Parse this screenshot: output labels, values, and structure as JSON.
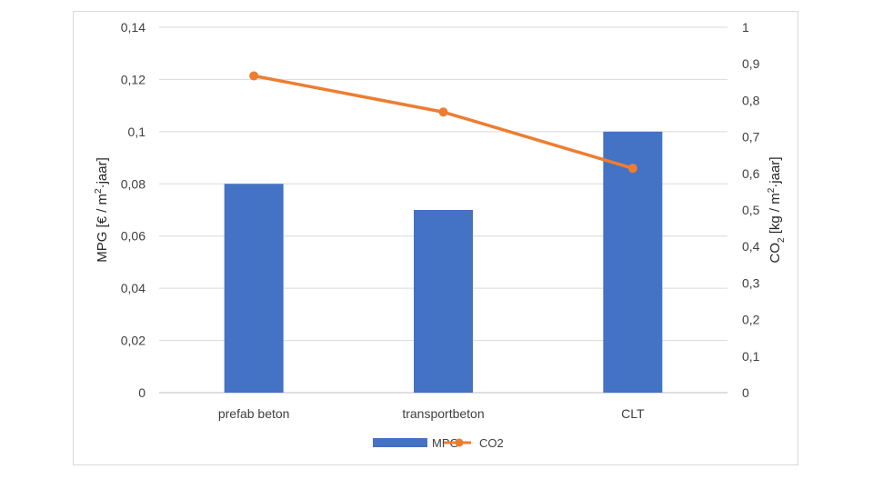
{
  "chart_data": {
    "type": "bar",
    "categories": [
      "prefab beton",
      "transportbeton",
      "CLT"
    ],
    "series": [
      {
        "name": "MPG",
        "type": "bar",
        "axis": "left",
        "values": [
          0.08,
          0.07,
          0.1
        ],
        "color": "#4472c4"
      },
      {
        "name": "CO2",
        "type": "line",
        "axis": "right",
        "values": [
          0.867,
          0.768,
          0.614
        ],
        "color": "#ed7d31"
      }
    ],
    "ylabel_left": {
      "main": "MPG [€ / m",
      "sup": "2",
      "rest": "·jaar]"
    },
    "ylabel_right": {
      "main": "CO",
      "sub": "2",
      "rest": " [kg / m",
      "sup": "2",
      "rest2": "·jaar]"
    },
    "y_left": {
      "min": 0,
      "max": 0.14,
      "ticks": [
        0,
        0.02,
        0.04,
        0.06,
        0.08,
        0.1,
        0.12,
        0.14
      ],
      "tick_labels": [
        "0",
        "0,02",
        "0,04",
        "0,06",
        "0,08",
        "0,1",
        "0,12",
        "0,14"
      ]
    },
    "y_right": {
      "min": 0,
      "max": 1,
      "ticks": [
        0,
        0.1,
        0.2,
        0.3,
        0.4,
        0.5,
        0.6,
        0.7,
        0.8,
        0.9,
        1
      ],
      "tick_labels": [
        "0",
        "0,1",
        "0,2",
        "0,3",
        "0,4",
        "0,5",
        "0,6",
        "0,7",
        "0,8",
        "0,9",
        "1"
      ]
    },
    "grid": true,
    "legend_position": "bottom",
    "legend": [
      "MPG",
      "CO2"
    ]
  }
}
